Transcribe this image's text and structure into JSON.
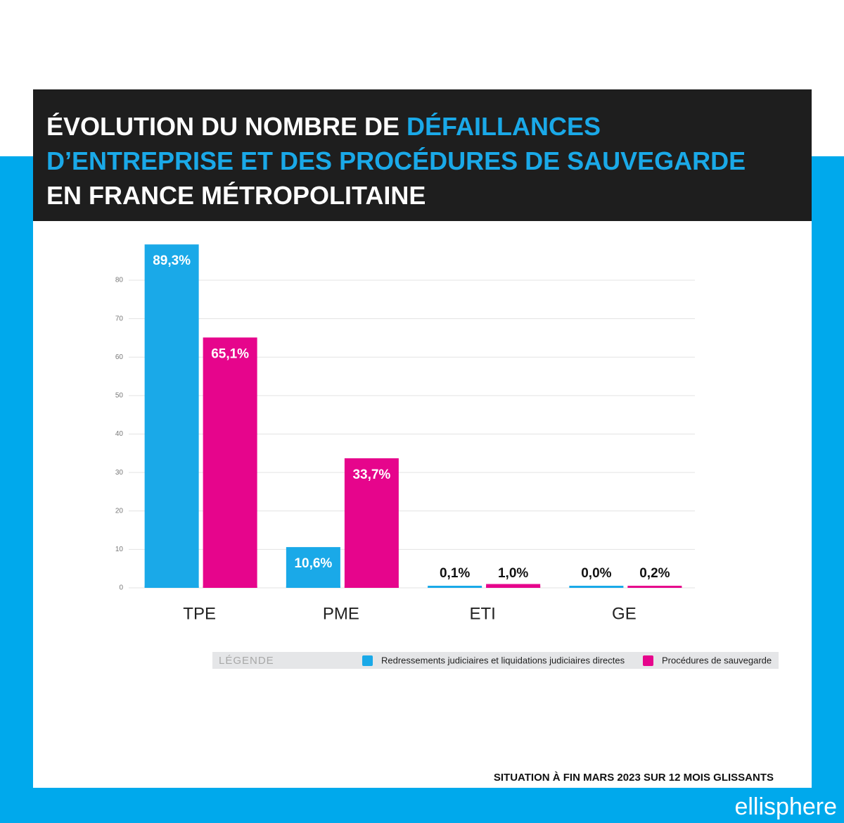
{
  "title_lines": [
    [
      {
        "text": "ÉVOLUTION DU NOMBRE DE ",
        "color": "#ffffff"
      },
      {
        "text": "DÉFAILLANCES",
        "color": "#1aa9e8"
      }
    ],
    [
      {
        "text": "D’ENTREPRISE ET DES PROCÉDURES DE SAUVEGARDE",
        "color": "#1aa9e8"
      }
    ],
    [
      {
        "text": "EN FRANCE MÉTROPOLITAINE",
        "color": "#ffffff"
      }
    ]
  ],
  "chart_data": {
    "type": "bar",
    "categories": [
      "TPE",
      "PME",
      "ETI",
      "GE"
    ],
    "series": [
      {
        "name": "Redressements judiciaires et liquidations judiciaires directes",
        "color": "#1aa9e8",
        "values": [
          89.3,
          10.6,
          0.1,
          0.0
        ],
        "value_labels": [
          "89,3%",
          "10,6%",
          "0,1%",
          "0,0%"
        ]
      },
      {
        "name": "Procédures de sauvegarde",
        "color": "#e6058c",
        "values": [
          65.1,
          33.7,
          1.0,
          0.2
        ],
        "value_labels": [
          "65,1%",
          "33,7%",
          "1,0%",
          "0,2%"
        ]
      }
    ],
    "ylim": [
      0,
      80
    ],
    "yticks": [
      0,
      10,
      20,
      30,
      40,
      50,
      60,
      70,
      80
    ],
    "grid": true,
    "legend_title": "LÉGENDE"
  },
  "footnote": "SITUATION À FIN MARS 2023 SUR 12 MOIS GLISSANTS",
  "brand": "ellisphere"
}
